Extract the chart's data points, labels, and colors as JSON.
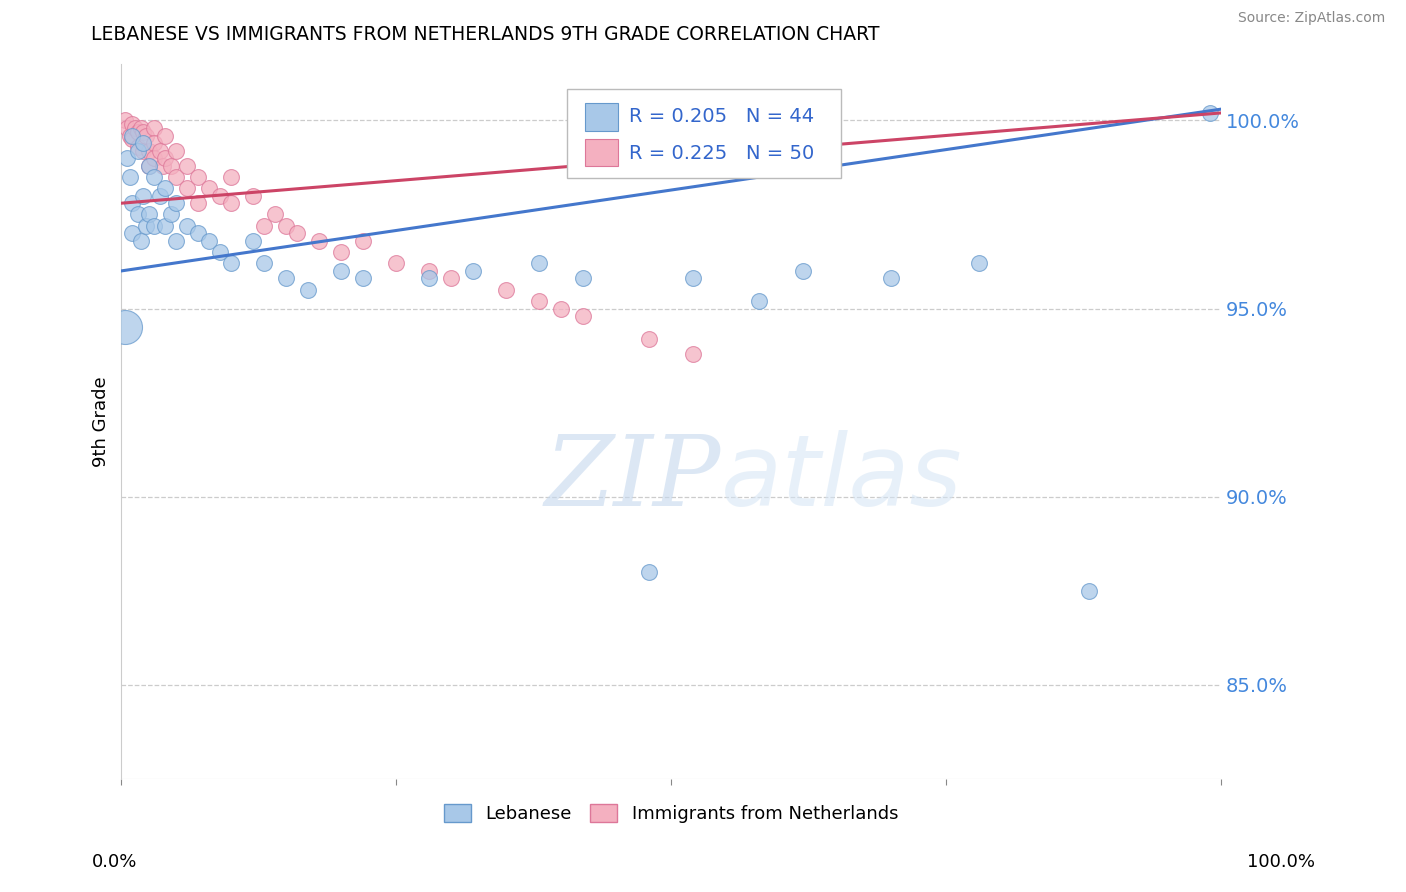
{
  "title": "LEBANESE VS IMMIGRANTS FROM NETHERLANDS 9TH GRADE CORRELATION CHART",
  "source": "Source: ZipAtlas.com",
  "ylabel": "9th Grade",
  "ytick_labels": [
    "85.0%",
    "90.0%",
    "95.0%",
    "100.0%"
  ],
  "ytick_values": [
    0.85,
    0.9,
    0.95,
    1.0
  ],
  "xlim": [
    0.0,
    1.0
  ],
  "ylim": [
    0.825,
    1.015
  ],
  "blue_R": 0.205,
  "blue_N": 44,
  "pink_R": 0.225,
  "pink_N": 50,
  "blue_color": "#a8c8e8",
  "blue_edge": "#6699cc",
  "pink_color": "#f4b0c0",
  "pink_edge": "#dd7799",
  "blue_line_color": "#4477cc",
  "pink_line_color": "#cc4466",
  "legend_label_blue": "Lebanese",
  "legend_label_pink": "Immigrants from Netherlands",
  "blue_scatter_x": [
    0.005,
    0.008,
    0.01,
    0.01,
    0.01,
    0.015,
    0.015,
    0.018,
    0.02,
    0.02,
    0.022,
    0.025,
    0.025,
    0.03,
    0.03,
    0.035,
    0.04,
    0.04,
    0.045,
    0.05,
    0.05,
    0.06,
    0.07,
    0.08,
    0.09,
    0.1,
    0.12,
    0.13,
    0.15,
    0.17,
    0.2,
    0.22,
    0.28,
    0.32,
    0.38,
    0.42,
    0.48,
    0.52,
    0.58,
    0.62,
    0.7,
    0.78,
    0.88,
    0.99
  ],
  "blue_scatter_y": [
    0.99,
    0.985,
    0.996,
    0.978,
    0.97,
    0.992,
    0.975,
    0.968,
    0.994,
    0.98,
    0.972,
    0.988,
    0.975,
    0.985,
    0.972,
    0.98,
    0.982,
    0.972,
    0.975,
    0.978,
    0.968,
    0.972,
    0.97,
    0.968,
    0.965,
    0.962,
    0.968,
    0.962,
    0.958,
    0.955,
    0.96,
    0.958,
    0.958,
    0.96,
    0.962,
    0.958,
    0.88,
    0.958,
    0.952,
    0.96,
    0.958,
    0.962,
    0.875,
    1.002
  ],
  "pink_scatter_x": [
    0.003,
    0.005,
    0.008,
    0.01,
    0.01,
    0.012,
    0.015,
    0.015,
    0.018,
    0.02,
    0.02,
    0.022,
    0.025,
    0.025,
    0.03,
    0.03,
    0.03,
    0.035,
    0.038,
    0.04,
    0.04,
    0.045,
    0.05,
    0.05,
    0.06,
    0.06,
    0.07,
    0.07,
    0.08,
    0.09,
    0.1,
    0.1,
    0.12,
    0.13,
    0.14,
    0.15,
    0.16,
    0.18,
    0.2,
    0.22,
    0.25,
    0.28,
    0.3,
    0.35,
    0.38,
    0.4,
    0.42,
    0.48,
    0.52,
    0.55
  ],
  "pink_scatter_y": [
    1.0,
    0.998,
    0.996,
    0.999,
    0.995,
    0.998,
    0.997,
    0.993,
    0.998,
    0.997,
    0.992,
    0.996,
    0.992,
    0.988,
    0.998,
    0.994,
    0.99,
    0.992,
    0.988,
    0.996,
    0.99,
    0.988,
    0.992,
    0.985,
    0.988,
    0.982,
    0.985,
    0.978,
    0.982,
    0.98,
    0.985,
    0.978,
    0.98,
    0.972,
    0.975,
    0.972,
    0.97,
    0.968,
    0.965,
    0.968,
    0.962,
    0.96,
    0.958,
    0.955,
    0.952,
    0.95,
    0.948,
    0.942,
    0.938,
    0.992
  ],
  "blue_line_x": [
    0.0,
    1.0
  ],
  "blue_line_y_start": 0.96,
  "blue_line_y_end": 1.003,
  "pink_line_x": [
    0.0,
    1.0
  ],
  "pink_line_y_start": 0.978,
  "pink_line_y_end": 1.002,
  "watermark_zip": "ZIP",
  "watermark_atlas": "atlas",
  "marker_size": 130,
  "large_marker_size": 600
}
